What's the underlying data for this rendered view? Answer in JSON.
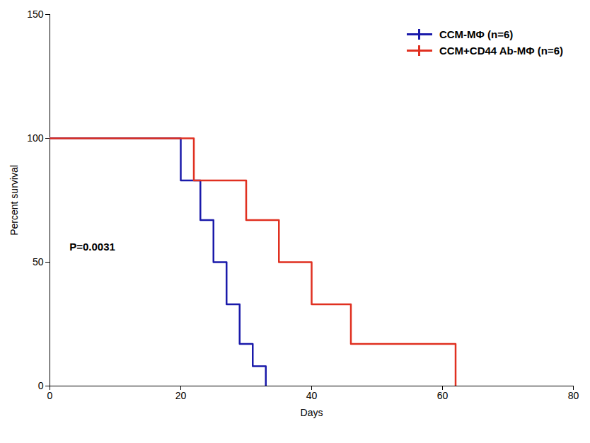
{
  "chart_data": {
    "type": "line",
    "xlabel": "Days",
    "ylabel": "Percent survival",
    "series": [
      {
        "name": "CCM-MΦ (n=6)",
        "color": "#1a1aaa",
        "x": [
          0,
          20,
          20,
          23,
          23,
          25,
          25,
          27,
          27,
          29,
          29,
          31,
          31,
          33,
          33
        ],
        "values": [
          100,
          100,
          83,
          83,
          67,
          67,
          50,
          50,
          33,
          33,
          17,
          17,
          8,
          8,
          0
        ]
      },
      {
        "name": "CCM+CD44 Ab-MΦ (n=6)",
        "color": "#e03020",
        "x": [
          0,
          22,
          22,
          30,
          30,
          35,
          35,
          40,
          40,
          46,
          46,
          55,
          55,
          62,
          62
        ],
        "values": [
          100,
          100,
          83,
          83,
          67,
          67,
          50,
          50,
          33,
          33,
          17,
          17,
          17,
          17,
          0
        ]
      }
    ],
    "annotations": [
      {
        "text": "P=0.0031",
        "x": 3,
        "y": 56
      }
    ],
    "xlim": [
      0,
      80
    ],
    "ylim": [
      0,
      150
    ],
    "xticks": [
      0,
      20,
      40,
      60,
      80
    ],
    "yticks": [
      0,
      50,
      100,
      150
    ],
    "legend": "upper right",
    "grid": false
  }
}
